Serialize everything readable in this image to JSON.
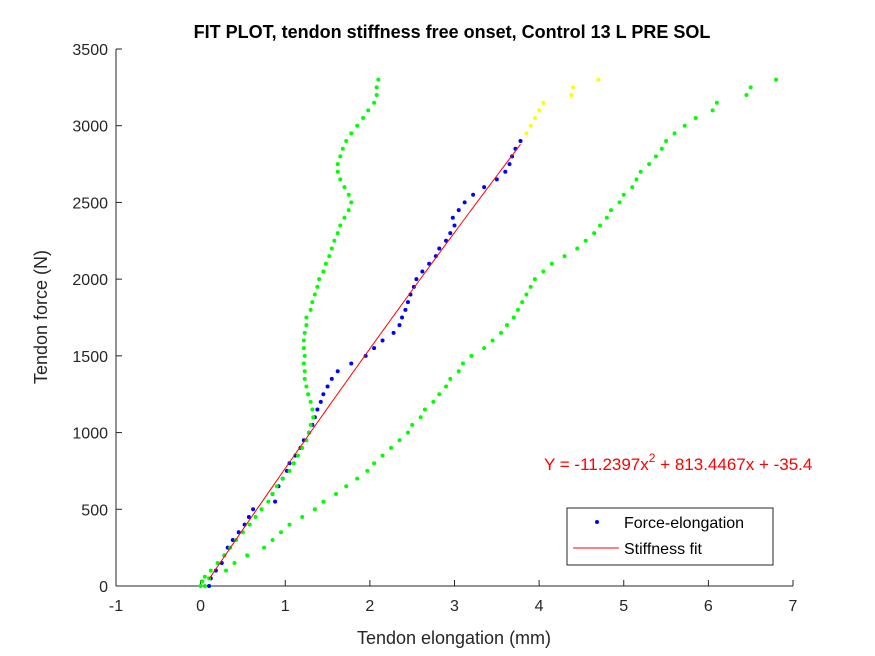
{
  "chart_data": {
    "type": "scatter",
    "title": "FIT PLOT, tendon stiffness free onset, Control 13 L PRE SOL",
    "xlabel": "Tendon elongation (mm)",
    "ylabel": "Tendon force (N)",
    "xlim": [
      -1,
      7
    ],
    "ylim": [
      0,
      3500
    ],
    "xticks": [
      "-1",
      "0",
      "1",
      "2",
      "3",
      "4",
      "5",
      "6",
      "7"
    ],
    "yticks": [
      "0",
      "500",
      "1000",
      "1500",
      "2000",
      "2500",
      "3000",
      "3500"
    ],
    "grid": false,
    "legend_position": "bottom-right",
    "legend": [
      {
        "label": "Force-elongation",
        "marker": "dot",
        "color": "#0000ff"
      },
      {
        "label": "Stiffness fit",
        "marker": "line",
        "color": "#ff0000"
      }
    ],
    "annotation": {
      "prefix": "Y = -11.2397x",
      "exponent": "2",
      "suffix": " + 813.4467x + -35.4",
      "color": "#ff0000"
    },
    "fit": {
      "a": -11.2397,
      "b": 813.4467,
      "c": -35.4,
      "x_range": [
        0.1,
        3.78
      ],
      "color": "#ff0000"
    },
    "series": [
      {
        "name": "Force-elongation",
        "color": "#0000ff",
        "points": [
          [
            0.1,
            0
          ],
          [
            0.12,
            50
          ],
          [
            0.18,
            100
          ],
          [
            0.25,
            150
          ],
          [
            0.28,
            200
          ],
          [
            0.32,
            250
          ],
          [
            0.38,
            300
          ],
          [
            0.45,
            350
          ],
          [
            0.52,
            400
          ],
          [
            0.57,
            450
          ],
          [
            0.62,
            500
          ],
          [
            0.88,
            550
          ],
          [
            0.85,
            600
          ],
          [
            0.92,
            650
          ],
          [
            0.97,
            700
          ],
          [
            1.02,
            750
          ],
          [
            1.05,
            800
          ],
          [
            1.12,
            850
          ],
          [
            1.18,
            900
          ],
          [
            1.22,
            950
          ],
          [
            1.28,
            1000
          ],
          [
            1.32,
            1050
          ],
          [
            1.35,
            1100
          ],
          [
            1.38,
            1150
          ],
          [
            1.42,
            1200
          ],
          [
            1.45,
            1250
          ],
          [
            1.5,
            1300
          ],
          [
            1.55,
            1350
          ],
          [
            1.62,
            1400
          ],
          [
            1.78,
            1450
          ],
          [
            1.95,
            1500
          ],
          [
            2.05,
            1550
          ],
          [
            2.15,
            1600
          ],
          [
            2.28,
            1650
          ],
          [
            2.35,
            1700
          ],
          [
            2.38,
            1750
          ],
          [
            2.42,
            1800
          ],
          [
            2.45,
            1850
          ],
          [
            2.48,
            1900
          ],
          [
            2.52,
            1950
          ],
          [
            2.55,
            2000
          ],
          [
            2.62,
            2050
          ],
          [
            2.7,
            2100
          ],
          [
            2.78,
            2150
          ],
          [
            2.82,
            2200
          ],
          [
            2.9,
            2250
          ],
          [
            2.95,
            2300
          ],
          [
            3.0,
            2350
          ],
          [
            2.98,
            2400
          ],
          [
            3.05,
            2450
          ],
          [
            3.12,
            2500
          ],
          [
            3.22,
            2550
          ],
          [
            3.35,
            2600
          ],
          [
            3.5,
            2650
          ],
          [
            3.6,
            2700
          ],
          [
            3.65,
            2750
          ],
          [
            3.68,
            2800
          ],
          [
            3.72,
            2850
          ],
          [
            3.78,
            2900
          ]
        ]
      },
      {
        "color": "#ffff00",
        "points": [
          [
            3.85,
            2950
          ],
          [
            3.9,
            3000
          ],
          [
            3.95,
            3050
          ],
          [
            4.0,
            3100
          ],
          [
            4.05,
            3150
          ],
          [
            4.38,
            3200
          ],
          [
            4.4,
            3250
          ],
          [
            4.7,
            3300
          ]
        ]
      },
      {
        "color": "#00ff00",
        "points": [
          [
            0,
            0
          ],
          [
            0.02,
            30
          ],
          [
            0.05,
            60
          ],
          [
            0.12,
            100
          ],
          [
            0.2,
            150
          ],
          [
            0.28,
            200
          ],
          [
            0.35,
            250
          ],
          [
            0.42,
            300
          ],
          [
            0.5,
            350
          ],
          [
            0.58,
            400
          ],
          [
            0.65,
            450
          ],
          [
            0.72,
            500
          ],
          [
            0.8,
            550
          ],
          [
            0.85,
            600
          ],
          [
            0.9,
            650
          ],
          [
            0.97,
            700
          ],
          [
            1.05,
            750
          ],
          [
            1.1,
            800
          ],
          [
            1.15,
            850
          ],
          [
            1.2,
            900
          ],
          [
            1.25,
            950
          ],
          [
            1.28,
            1000
          ],
          [
            1.3,
            1050
          ],
          [
            1.33,
            1100
          ],
          [
            1.32,
            1150
          ],
          [
            1.3,
            1200
          ],
          [
            1.27,
            1250
          ],
          [
            1.25,
            1300
          ],
          [
            1.23,
            1350
          ],
          [
            1.23,
            1400
          ],
          [
            1.22,
            1450
          ],
          [
            1.23,
            1500
          ],
          [
            1.22,
            1550
          ],
          [
            1.22,
            1600
          ],
          [
            1.23,
            1650
          ],
          [
            1.25,
            1700
          ],
          [
            1.25,
            1750
          ],
          [
            1.3,
            1800
          ],
          [
            1.32,
            1850
          ],
          [
            1.35,
            1900
          ],
          [
            1.38,
            1950
          ],
          [
            1.4,
            2000
          ],
          [
            1.45,
            2050
          ],
          [
            1.48,
            2100
          ],
          [
            1.52,
            2150
          ],
          [
            1.55,
            2200
          ],
          [
            1.58,
            2250
          ],
          [
            1.62,
            2300
          ],
          [
            1.65,
            2350
          ],
          [
            1.7,
            2400
          ],
          [
            1.75,
            2450
          ],
          [
            1.78,
            2500
          ],
          [
            1.75,
            2550
          ],
          [
            1.7,
            2600
          ],
          [
            1.65,
            2650
          ],
          [
            1.62,
            2700
          ],
          [
            1.62,
            2750
          ],
          [
            1.65,
            2800
          ],
          [
            1.68,
            2850
          ],
          [
            1.72,
            2900
          ],
          [
            1.78,
            2950
          ],
          [
            1.85,
            3000
          ],
          [
            1.92,
            3050
          ],
          [
            1.98,
            3100
          ],
          [
            2.05,
            3150
          ],
          [
            2.08,
            3200
          ],
          [
            2.08,
            3250
          ],
          [
            2.1,
            3300
          ]
        ]
      },
      {
        "color": "#00ff00",
        "points": [
          [
            0.05,
            0
          ],
          [
            0.1,
            50
          ],
          [
            0.3,
            100
          ],
          [
            0.4,
            150
          ],
          [
            0.55,
            200
          ],
          [
            0.75,
            250
          ],
          [
            0.85,
            300
          ],
          [
            0.95,
            350
          ],
          [
            1.05,
            400
          ],
          [
            1.2,
            450
          ],
          [
            1.35,
            500
          ],
          [
            1.45,
            550
          ],
          [
            1.6,
            600
          ],
          [
            1.72,
            650
          ],
          [
            1.85,
            700
          ],
          [
            1.97,
            750
          ],
          [
            2.05,
            800
          ],
          [
            2.15,
            850
          ],
          [
            2.25,
            900
          ],
          [
            2.35,
            950
          ],
          [
            2.45,
            1000
          ],
          [
            2.5,
            1050
          ],
          [
            2.6,
            1100
          ],
          [
            2.65,
            1150
          ],
          [
            2.75,
            1200
          ],
          [
            2.82,
            1250
          ],
          [
            2.9,
            1300
          ],
          [
            2.95,
            1350
          ],
          [
            3.05,
            1400
          ],
          [
            3.1,
            1450
          ],
          [
            3.2,
            1500
          ],
          [
            3.35,
            1550
          ],
          [
            3.45,
            1600
          ],
          [
            3.55,
            1650
          ],
          [
            3.62,
            1700
          ],
          [
            3.7,
            1750
          ],
          [
            3.75,
            1800
          ],
          [
            3.8,
            1850
          ],
          [
            3.85,
            1900
          ],
          [
            3.9,
            1950
          ],
          [
            3.95,
            2000
          ],
          [
            4.05,
            2050
          ],
          [
            4.15,
            2100
          ],
          [
            4.3,
            2150
          ],
          [
            4.45,
            2200
          ],
          [
            4.55,
            2250
          ],
          [
            4.65,
            2300
          ],
          [
            4.72,
            2350
          ],
          [
            4.8,
            2400
          ],
          [
            4.85,
            2450
          ],
          [
            4.95,
            2500
          ],
          [
            5.0,
            2550
          ],
          [
            5.1,
            2600
          ],
          [
            5.15,
            2650
          ],
          [
            5.2,
            2700
          ],
          [
            5.3,
            2750
          ],
          [
            5.38,
            2800
          ],
          [
            5.45,
            2850
          ],
          [
            5.5,
            2900
          ],
          [
            5.6,
            2950
          ],
          [
            5.72,
            3000
          ],
          [
            5.85,
            3050
          ],
          [
            6.05,
            3100
          ],
          [
            6.1,
            3150
          ],
          [
            6.45,
            3200
          ],
          [
            6.5,
            3250
          ],
          [
            6.8,
            3300
          ]
        ]
      }
    ]
  }
}
